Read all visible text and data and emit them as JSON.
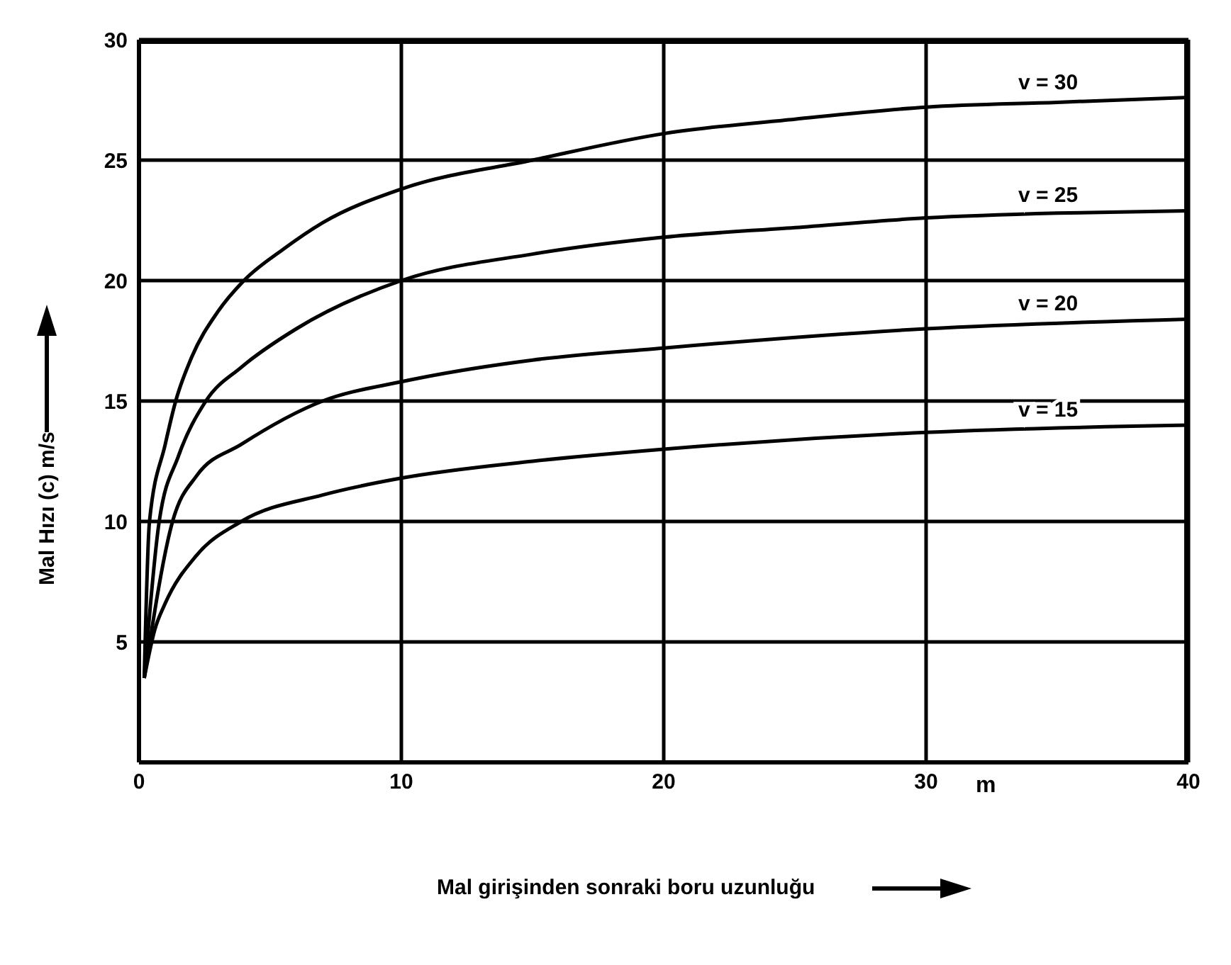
{
  "chart_data": {
    "type": "line",
    "xlabel": "Mal girişinden sonraki boru uzunluğu",
    "ylabel": "Mal Hızı (c) m/s",
    "xlim": [
      0,
      40
    ],
    "xticks": [
      0,
      10,
      20,
      30,
      40
    ],
    "ylim": [
      0,
      30
    ],
    "yticks": [
      {
        "value": 0,
        "label": null
      },
      5,
      10,
      15,
      20,
      25,
      30
    ],
    "grid": true,
    "legend": false,
    "marker": "none",
    "line_style": "solid",
    "annotations": [
      "m"
    ],
    "series": [
      {
        "name": "v = 30",
        "color": "#000000",
        "x": [
          0.2,
          0.4,
          1.0,
          1.4,
          2,
          3,
          4,
          5.5,
          7,
          10,
          15,
          20,
          25,
          30,
          35,
          40
        ],
        "values": [
          3.5,
          10,
          13.2,
          15,
          16.8,
          18.7,
          20,
          21.3,
          22.4,
          23.8,
          25,
          26.1,
          26.7,
          27.2,
          27.4,
          27.6
        ]
      },
      {
        "name": "v = 25",
        "color": "#000000",
        "x": [
          0.2,
          0.77,
          1.5,
          2.55,
          3.9,
          6,
          10,
          15,
          20,
          25,
          30,
          35,
          40
        ],
        "values": [
          3.5,
          10,
          12.7,
          15,
          16.4,
          18,
          20,
          21.1,
          21.8,
          22.2,
          22.6,
          22.8,
          22.9
        ]
      },
      {
        "name": "v = 20",
        "color": "#000000",
        "x": [
          0.2,
          1.28,
          2.2,
          3.9,
          7,
          10,
          15,
          20,
          30,
          40
        ],
        "values": [
          3.5,
          10,
          11.9,
          13.2,
          15,
          15.8,
          16.7,
          17.2,
          18,
          18.4
        ]
      },
      {
        "name": "v = 15",
        "color": "#000000",
        "x": [
          0.2,
          0.6,
          1,
          2.2,
          3.9,
          7,
          10,
          15,
          20,
          30,
          40
        ],
        "values": [
          3.5,
          5.5,
          6.6,
          8.6,
          10,
          11.1,
          11.8,
          12.5,
          13,
          13.7,
          14
        ]
      }
    ]
  }
}
